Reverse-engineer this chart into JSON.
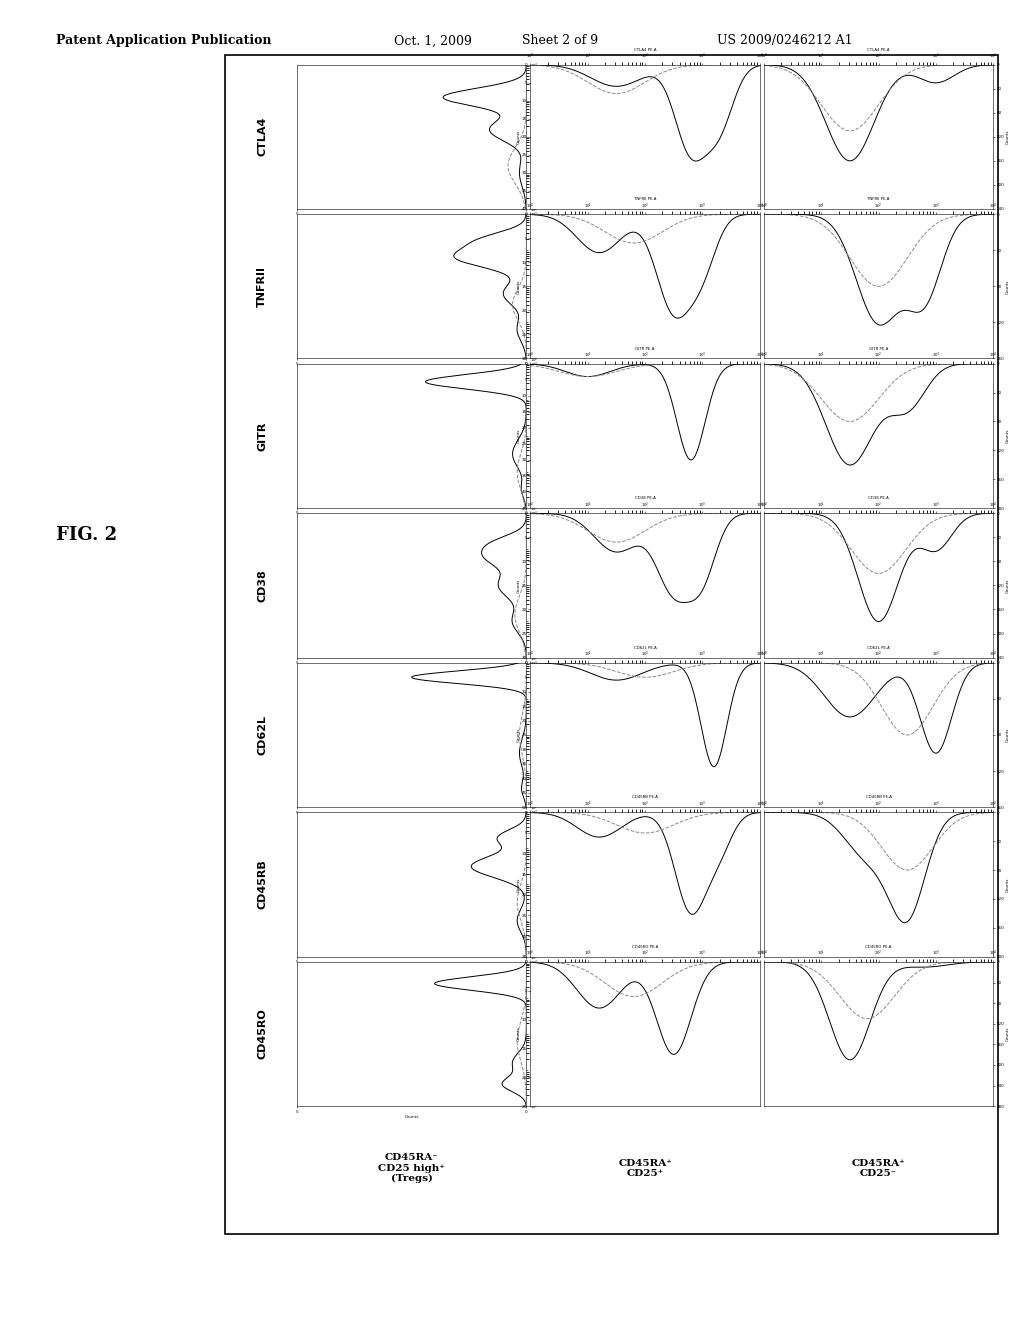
{
  "header_left": "Patent Application Publication",
  "header_date": "Oct. 1, 2009",
  "header_sheet": "Sheet 2 of 9",
  "header_patent": "US 2009/0246212 A1",
  "fig_label": "FIG. 2",
  "row_labels": [
    "CTLA4",
    "TNFRII",
    "GITR",
    "CD38",
    "CD62L",
    "CD45RB",
    "CD45RO"
  ],
  "col_labels": [
    "CD45RA⁻\nCD25 high⁺\n(Tregs)",
    "CD45RA⁺\nCD25⁺",
    "CD45RA⁺\nCD25⁻"
  ],
  "bg_color": "#ffffff",
  "border_color": "#000000",
  "line_dark": "#000000",
  "line_gray": "#aaaaaa",
  "page_width": 10.24,
  "page_height": 13.2,
  "dpi": 100
}
